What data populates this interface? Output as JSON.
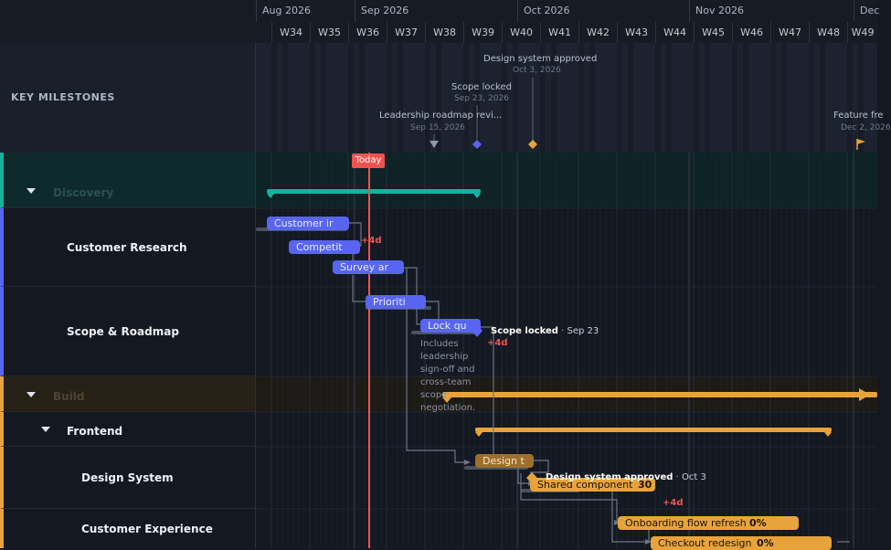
{
  "timeline": {
    "months": [
      "Aug 2026",
      "Sep 2026",
      "Oct 2026",
      "Nov 2026",
      "Dec"
    ],
    "weeks": [
      "W34",
      "W35",
      "W36",
      "W37",
      "W38",
      "W39",
      "W40",
      "W41",
      "W42",
      "W43",
      "W44",
      "W45",
      "W46",
      "W47",
      "W48",
      "W49"
    ],
    "today_label": "Today"
  },
  "milestones": {
    "row_label": "KEY MILESTONES",
    "items": [
      {
        "title": "Design system approved",
        "date": "Oct 3, 2026",
        "color": "#e8a33a"
      },
      {
        "title": "Scope locked",
        "date": "Sep 23, 2026",
        "color": "#5865f2"
      },
      {
        "title": "Leadership roadmap revi...",
        "date": "Sep 15, 2026",
        "color": "#8f98a8"
      },
      {
        "title": "Feature fre",
        "date": "Dec 2, 2026",
        "color": "#e8a33a"
      }
    ]
  },
  "rows": [
    {
      "label": "Discovery",
      "color": "#16b2a0"
    },
    {
      "label": "Customer Research",
      "color": "#5865f2"
    },
    {
      "label": "Scope & Roadmap",
      "color": "#5865f2"
    },
    {
      "label": "Build",
      "color": "#e8a33a"
    },
    {
      "label": "Frontend",
      "color": "#e8a33a"
    },
    {
      "label": "Design System",
      "color": "#e8a33a"
    },
    {
      "label": "Customer Experience",
      "color": "#e8a33a"
    }
  ],
  "tasks": {
    "customer_interviews": "Customer ir",
    "competitive": "Competit",
    "survey": "Survey ar",
    "prioritize": "Prioriti",
    "lock_qu": "Lock qu",
    "design_t": "Design t",
    "shared_component": "Shared component",
    "shared_component_pct": "30",
    "onboarding": "Onboarding flow refresh",
    "onboarding_pct": "0%",
    "checkout": "Checkout redesign",
    "checkout_pct": "0%"
  },
  "inline_milestones": {
    "scope_locked": {
      "name": "Scope locked",
      "date": "Sep 23"
    },
    "design_approved": {
      "name": "Design system approved",
      "date": "Oct 3"
    }
  },
  "delays": {
    "d1": "+4d",
    "d2": "+4d",
    "d3": "+4d"
  },
  "note": "Includes leadership sign-off and cross-team scope negotiation."
}
